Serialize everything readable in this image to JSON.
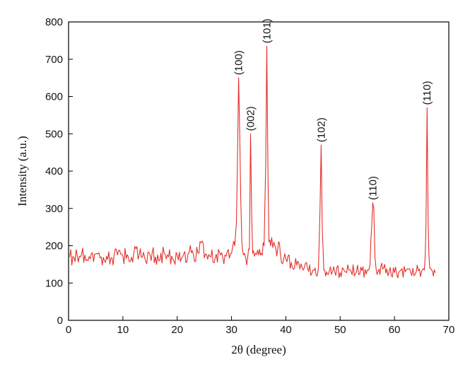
{
  "chart_data": {
    "type": "line",
    "title": "",
    "xlabel": "2θ (degree)",
    "ylabel": "Intensity (a.u.)",
    "xlim": [
      0,
      70
    ],
    "ylim": [
      0,
      800
    ],
    "xticks": [
      0,
      10,
      20,
      30,
      40,
      50,
      60,
      70
    ],
    "yticks": [
      0,
      100,
      200,
      300,
      400,
      500,
      600,
      700,
      800
    ],
    "grid": false,
    "legend": "none",
    "series_color": "#e3302a",
    "series": [
      {
        "x": [
          0.2,
          1,
          2,
          3,
          4,
          5,
          6,
          7,
          8,
          9,
          10,
          11,
          12,
          13,
          14,
          15,
          16,
          17,
          18,
          19,
          20,
          21,
          22,
          23,
          24,
          24.8,
          25.2,
          26,
          27,
          28,
          29,
          30,
          30.6,
          30.9,
          31.1,
          31.3,
          31.5,
          31.7,
          31.9,
          32.2,
          32.6,
          33.0,
          33.3,
          33.5,
          33.7,
          33.9,
          34.2,
          35,
          35.5,
          36,
          36.3,
          36.5,
          36.7,
          36.9,
          37.2,
          37.6,
          38,
          38.5,
          39,
          40,
          41,
          42,
          43,
          44,
          45,
          46.0,
          46.3,
          46.5,
          46.7,
          47.0,
          47.5,
          48,
          49,
          50,
          51,
          52,
          53,
          54,
          55,
          55.5,
          55.8,
          56.0,
          56.2,
          56.4,
          56.6,
          57,
          57.5,
          58,
          59,
          60,
          61,
          62,
          63,
          64,
          65,
          65.5,
          65.8,
          66.0,
          66.2,
          66.5,
          67,
          67.5
        ],
        "y": [
          170,
          168,
          172,
          175,
          165,
          178,
          170,
          172,
          168,
          175,
          172,
          170,
          178,
          173,
          169,
          175,
          170,
          180,
          165,
          172,
          175,
          170,
          178,
          175,
          180,
          205,
          178,
          172,
          168,
          175,
          172,
          180,
          200,
          260,
          430,
          650,
          510,
          330,
          210,
          175,
          168,
          172,
          190,
          500,
          290,
          180,
          172,
          175,
          180,
          200,
          420,
          735,
          400,
          210,
          200,
          195,
          200,
          190,
          178,
          165,
          155,
          148,
          142,
          138,
          135,
          140,
          300,
          470,
          250,
          135,
          130,
          132,
          130,
          128,
          130,
          132,
          130,
          133,
          135,
          150,
          250,
          315,
          300,
          170,
          140,
          132,
          145,
          140,
          130,
          128,
          132,
          130,
          128,
          130,
          132,
          135,
          250,
          570,
          260,
          140,
          132,
          128
        ]
      }
    ],
    "annotations": [
      {
        "text": "(100)",
        "x": 31.3,
        "y": 650
      },
      {
        "text": "(002)",
        "x": 33.5,
        "y": 500
      },
      {
        "text": "(101)",
        "x": 36.5,
        "y": 735
      },
      {
        "text": "(102)",
        "x": 46.5,
        "y": 470
      },
      {
        "text": "(110)",
        "x": 56.0,
        "y": 315
      },
      {
        "text": "(110)",
        "x": 66.0,
        "y": 570
      }
    ]
  }
}
